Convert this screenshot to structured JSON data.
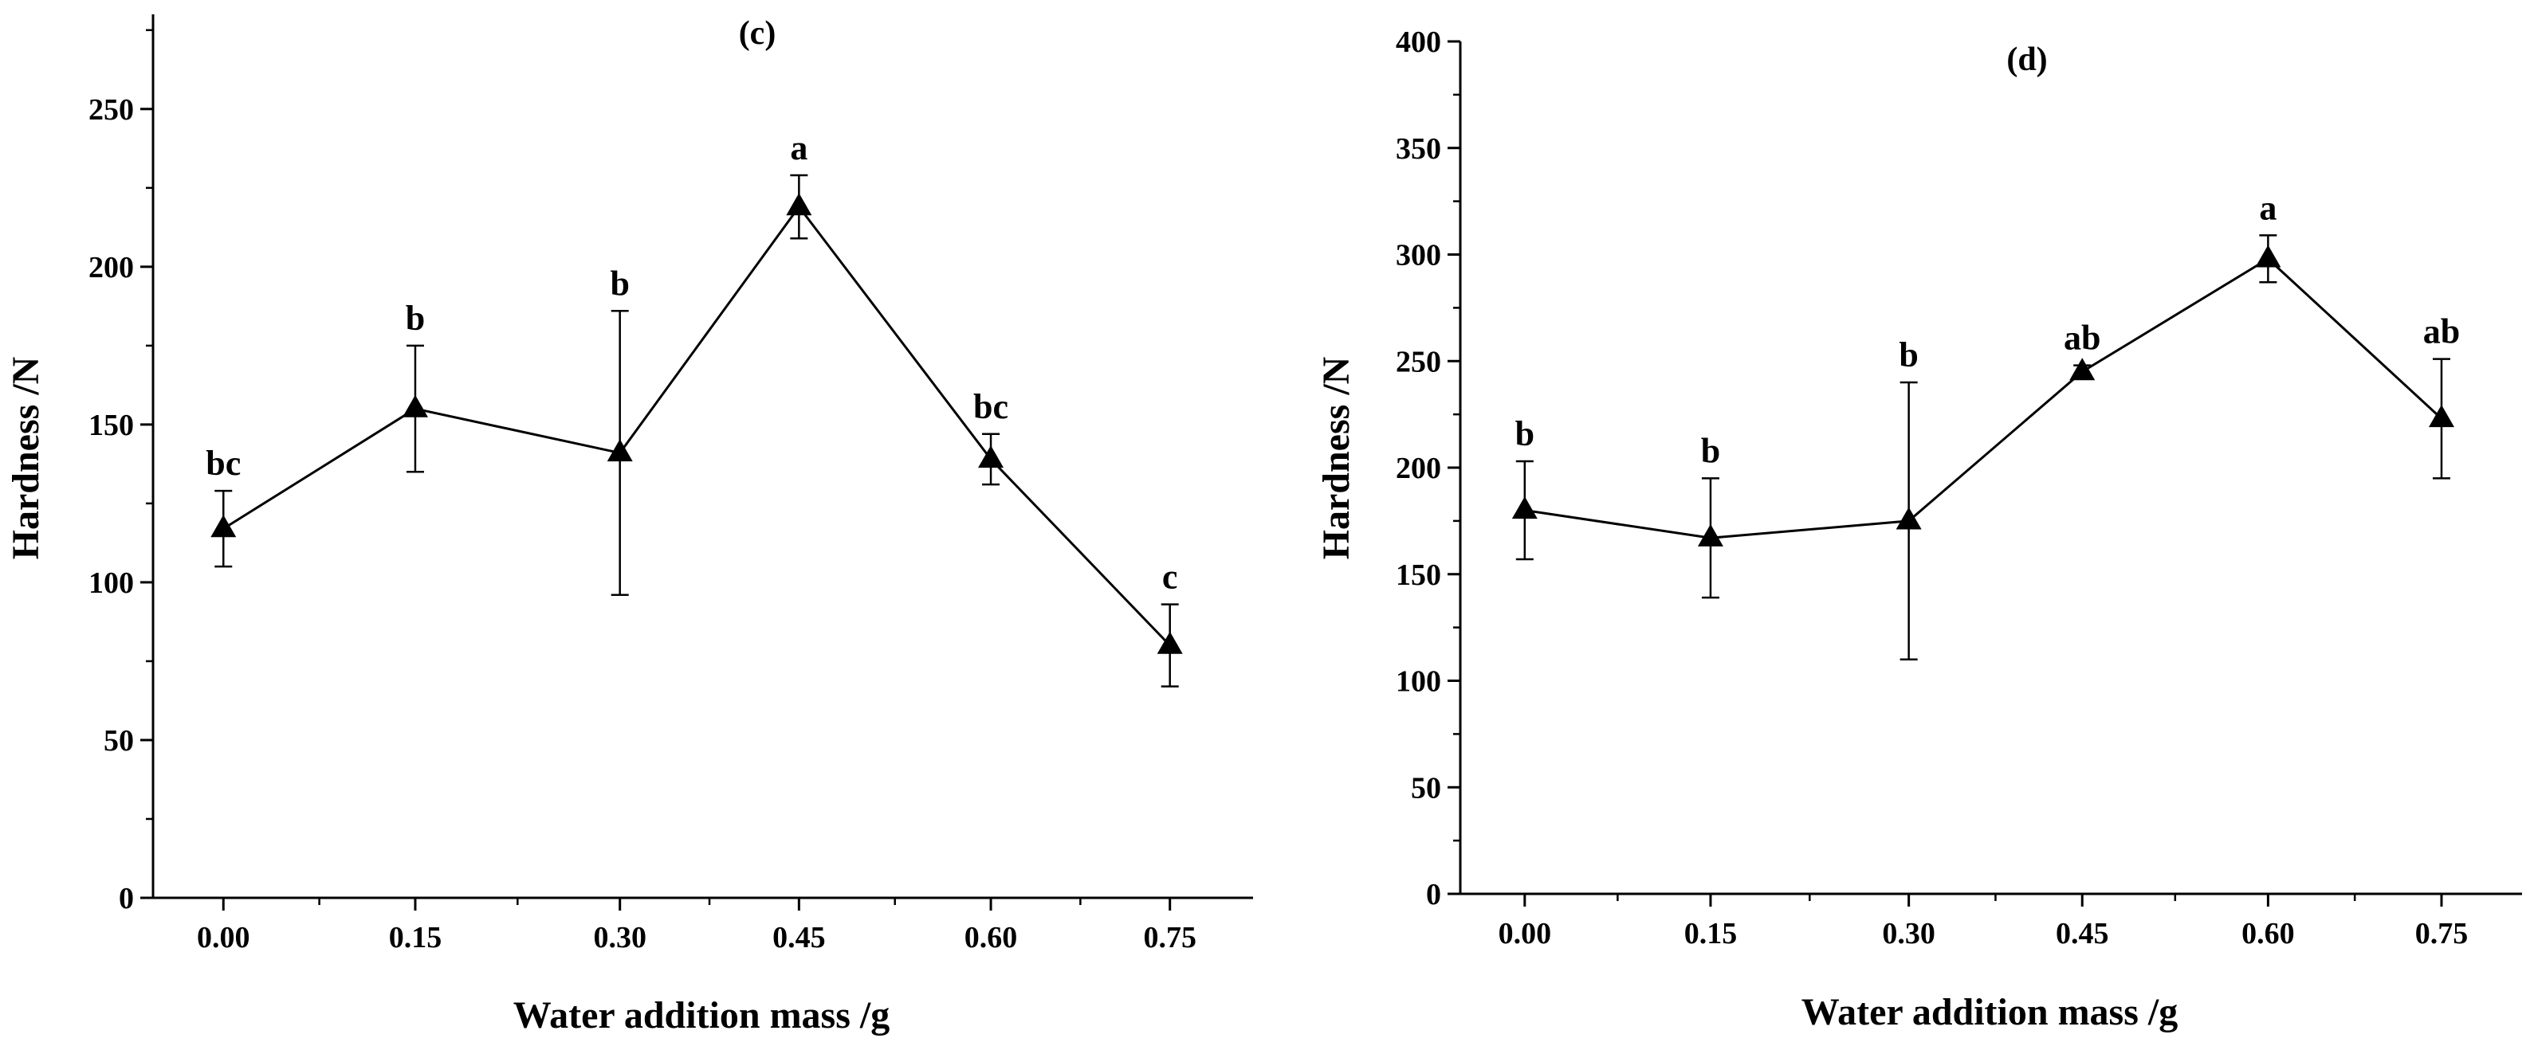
{
  "chart_data": [
    {
      "type": "line",
      "title": "(c)",
      "xlabel": "Water addition mass /g",
      "ylabel": "Hardness /N",
      "categories": [
        "0.00",
        "0.15",
        "0.30",
        "0.45",
        "0.60",
        "0.75"
      ],
      "x": [
        0.0,
        0.15,
        0.31,
        0.45,
        0.6,
        0.74
      ],
      "xlim": [
        -0.055,
        0.805
      ],
      "ylim": [
        0,
        280
      ],
      "yticks": [
        0,
        50,
        100,
        150,
        200,
        250
      ],
      "series": [
        {
          "name": "Hardness",
          "values": [
            117,
            155,
            141,
            219,
            139,
            80
          ],
          "error": [
            12,
            20,
            45,
            10,
            8,
            13
          ],
          "labels": [
            "bc",
            "b",
            "b",
            "a",
            "bc",
            "c"
          ]
        }
      ],
      "marker": "triangle",
      "color": "#000000"
    },
    {
      "type": "line",
      "title": "(d)",
      "xlabel": "Water addition mass /g",
      "ylabel": "Hardness /N",
      "categories": [
        "0.00",
        "0.15",
        "0.30",
        "0.45",
        "0.60",
        "0.75"
      ],
      "x": [
        0.0,
        0.15,
        0.31,
        0.45,
        0.6,
        0.74
      ],
      "xlim": [
        -0.052,
        0.805
      ],
      "ylim": [
        0,
        400
      ],
      "yticks": [
        0,
        50,
        100,
        150,
        200,
        250,
        300,
        350,
        400
      ],
      "series": [
        {
          "name": "Hardness",
          "values": [
            180,
            167,
            175,
            245,
            298,
            223
          ],
          "error": [
            23,
            28,
            65,
            3,
            11,
            28
          ],
          "labels": [
            "b",
            "b",
            "b",
            "ab",
            "a",
            "ab"
          ]
        }
      ],
      "marker": "triangle",
      "color": "#000000"
    }
  ]
}
